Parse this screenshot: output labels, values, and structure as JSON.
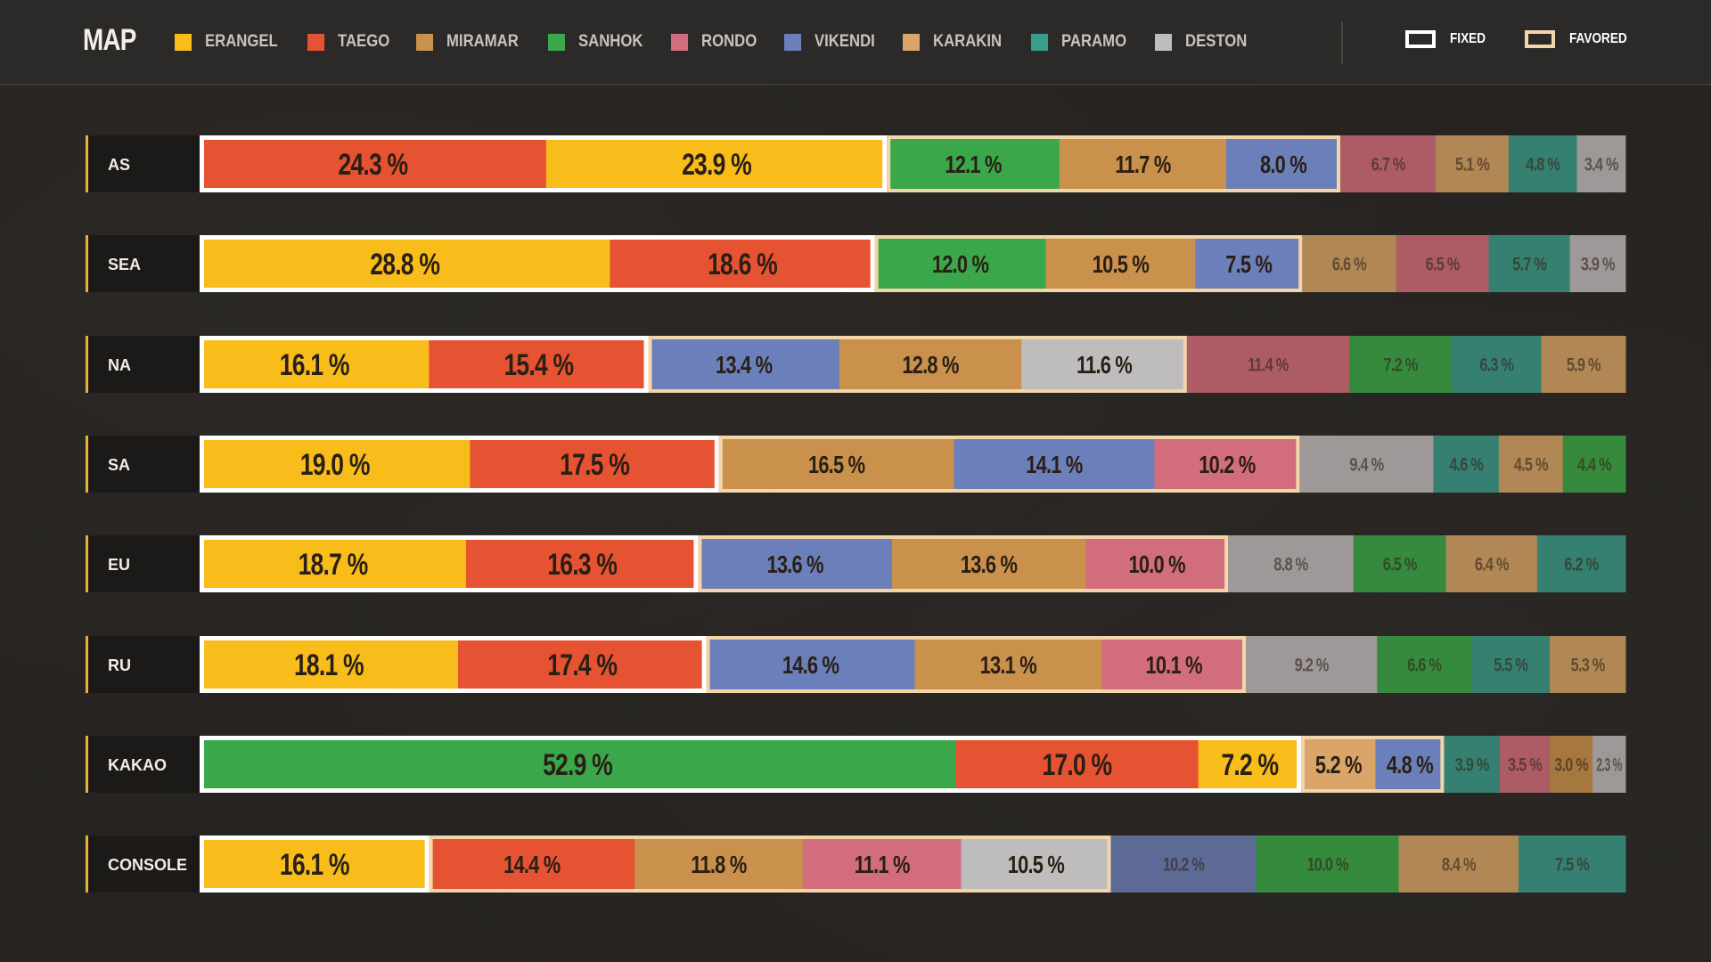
{
  "header": {
    "title": "MAP"
  },
  "legend": [
    {
      "label": "ERANGEL",
      "color": "#f9bd1b"
    },
    {
      "label": "TAEGO",
      "color": "#e65332"
    },
    {
      "label": "MIRAMAR",
      "color": "#c9914c"
    },
    {
      "label": "SANHOK",
      "color": "#3aa84a"
    },
    {
      "label": "RONDO",
      "color": "#d26d7d"
    },
    {
      "label": "VIKENDI",
      "color": "#6b7fba"
    },
    {
      "label": "KARAKIN",
      "color": "#d9a569"
    },
    {
      "label": "PARAMO",
      "color": "#3a9c8c"
    },
    {
      "label": "DESTON",
      "color": "#bfbcbe"
    }
  ],
  "keys": {
    "fixed": "FIXED",
    "favored": "FAVORED"
  },
  "chart_data": {
    "type": "bar",
    "orientation": "horizontal",
    "stacked": true,
    "value_unit": "%",
    "label_suffix": " %",
    "rows": [
      {
        "region": "AS",
        "fixed_count": 2,
        "favored_count": 3,
        "segments": [
          {
            "map": "TAEGO",
            "value": 24.3
          },
          {
            "map": "ERANGEL",
            "value": 23.9
          },
          {
            "map": "SANHOK",
            "value": 12.1
          },
          {
            "map": "MIRAMAR",
            "value": 11.7
          },
          {
            "map": "VIKENDI",
            "value": 8.0
          },
          {
            "map": "RONDO",
            "value": 6.7
          },
          {
            "map": "KARAKIN",
            "value": 5.1
          },
          {
            "map": "PARAMO",
            "value": 4.8
          },
          {
            "map": "DESTON",
            "value": 3.4
          }
        ]
      },
      {
        "region": "SEA",
        "fixed_count": 2,
        "favored_count": 3,
        "segments": [
          {
            "map": "ERANGEL",
            "value": 28.8
          },
          {
            "map": "TAEGO",
            "value": 18.6
          },
          {
            "map": "SANHOK",
            "value": 12.0
          },
          {
            "map": "MIRAMAR",
            "value": 10.5
          },
          {
            "map": "VIKENDI",
            "value": 7.5
          },
          {
            "map": "KARAKIN",
            "value": 6.6
          },
          {
            "map": "RONDO",
            "value": 6.5
          },
          {
            "map": "PARAMO",
            "value": 5.7
          },
          {
            "map": "DESTON",
            "value": 3.9
          }
        ]
      },
      {
        "region": "NA",
        "fixed_count": 2,
        "favored_count": 3,
        "segments": [
          {
            "map": "ERANGEL",
            "value": 16.1
          },
          {
            "map": "TAEGO",
            "value": 15.4
          },
          {
            "map": "VIKENDI",
            "value": 13.4
          },
          {
            "map": "MIRAMAR",
            "value": 12.8
          },
          {
            "map": "DESTON",
            "value": 11.6
          },
          {
            "map": "RONDO",
            "value": 11.4
          },
          {
            "map": "SANHOK",
            "value": 7.2
          },
          {
            "map": "PARAMO",
            "value": 6.3
          },
          {
            "map": "KARAKIN",
            "value": 5.9
          }
        ]
      },
      {
        "region": "SA",
        "fixed_count": 2,
        "favored_count": 3,
        "segments": [
          {
            "map": "ERANGEL",
            "value": 19.0
          },
          {
            "map": "TAEGO",
            "value": 17.5
          },
          {
            "map": "MIRAMAR",
            "value": 16.5
          },
          {
            "map": "VIKENDI",
            "value": 14.1
          },
          {
            "map": "RONDO",
            "value": 10.2
          },
          {
            "map": "DESTON",
            "value": 9.4
          },
          {
            "map": "PARAMO",
            "value": 4.6
          },
          {
            "map": "KARAKIN",
            "value": 4.5
          },
          {
            "map": "SANHOK",
            "value": 4.4
          }
        ]
      },
      {
        "region": "EU",
        "fixed_count": 2,
        "favored_count": 3,
        "segments": [
          {
            "map": "ERANGEL",
            "value": 18.7
          },
          {
            "map": "TAEGO",
            "value": 16.3
          },
          {
            "map": "VIKENDI",
            "value": 13.6
          },
          {
            "map": "MIRAMAR",
            "value": 13.6
          },
          {
            "map": "RONDO",
            "value": 10.0
          },
          {
            "map": "DESTON",
            "value": 8.8
          },
          {
            "map": "SANHOK",
            "value": 6.5
          },
          {
            "map": "KARAKIN",
            "value": 6.4
          },
          {
            "map": "PARAMO",
            "value": 6.2
          }
        ]
      },
      {
        "region": "RU",
        "fixed_count": 2,
        "favored_count": 3,
        "segments": [
          {
            "map": "ERANGEL",
            "value": 18.1
          },
          {
            "map": "TAEGO",
            "value": 17.4
          },
          {
            "map": "VIKENDI",
            "value": 14.6
          },
          {
            "map": "MIRAMAR",
            "value": 13.1
          },
          {
            "map": "RONDO",
            "value": 10.1
          },
          {
            "map": "DESTON",
            "value": 9.2
          },
          {
            "map": "SANHOK",
            "value": 6.6
          },
          {
            "map": "PARAMO",
            "value": 5.5
          },
          {
            "map": "KARAKIN",
            "value": 5.3
          }
        ]
      },
      {
        "region": "KAKAO",
        "fixed_count": 3,
        "favored_count": 2,
        "segments": [
          {
            "map": "SANHOK",
            "value": 52.9
          },
          {
            "map": "TAEGO",
            "value": 17.0
          },
          {
            "map": "ERANGEL",
            "value": 7.2
          },
          {
            "map": "KARAKIN",
            "value": 5.2
          },
          {
            "map": "VIKENDI",
            "value": 4.8
          },
          {
            "map": "PARAMO",
            "value": 3.9
          },
          {
            "map": "RONDO",
            "value": 3.5
          },
          {
            "map": "MIRAMAR",
            "value": 3.0
          },
          {
            "map": "DESTON",
            "value": 2.3
          }
        ]
      },
      {
        "region": "CONSOLE",
        "fixed_count": 1,
        "favored_count": 4,
        "segments": [
          {
            "map": "ERANGEL",
            "value": 16.1
          },
          {
            "map": "TAEGO",
            "value": 14.4
          },
          {
            "map": "MIRAMAR",
            "value": 11.8
          },
          {
            "map": "RONDO",
            "value": 11.1
          },
          {
            "map": "DESTON",
            "value": 10.5
          },
          {
            "map": "VIKENDI",
            "value": 10.2
          },
          {
            "map": "SANHOK",
            "value": 10.0
          },
          {
            "map": "KARAKIN",
            "value": 8.4
          },
          {
            "map": "PARAMO",
            "value": 7.5
          }
        ]
      }
    ]
  }
}
